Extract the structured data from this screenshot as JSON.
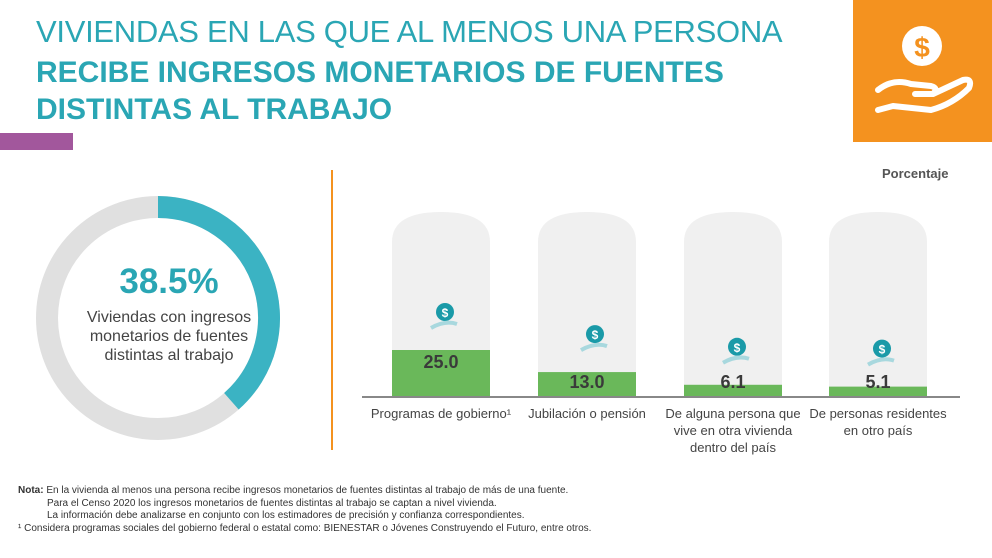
{
  "title": {
    "line1": "VIVIENDAS EN LAS QUE AL MENOS UNA PERSONA",
    "line2": "RECIBE INGRESOS MONETARIOS DE FUENTES DISTINTAS AL TRABAJO"
  },
  "colors": {
    "teal": "#2aa6b4",
    "orange": "#f4921f",
    "green": "#6ab85a",
    "purple": "#a2579c",
    "gray": "#e0e0e0"
  },
  "donut": {
    "value_label": "38.5%",
    "text": "Viviendas con ingresos monetarios de fuentes distintas al trabajo"
  },
  "chart_data": {
    "type": "bar",
    "unit_label": "Porcentaje",
    "categories": [
      "Programas de gobierno¹",
      "Jubilación o pensión",
      "De alguna persona que vive en otra vivienda dentro del país",
      "De personas residentes en otro país"
    ],
    "values": [
      25.0,
      13.0,
      6.1,
      5.1
    ],
    "value_labels": [
      "25.0",
      "13.0",
      "6.1",
      "5.1"
    ],
    "ylim": [
      0,
      100
    ],
    "icons": [
      "house-money-hand-icon",
      "pension-card-icon",
      "mexico-map-money-icon",
      "world-map-money-icon"
    ],
    "donut_value": 38.5
  },
  "notes": {
    "label": "Nota:",
    "line1": " En la vivienda al menos una persona recibe ingresos monetarios de fuentes distintas al trabajo de más de una fuente.",
    "line2": "Para el Censo 2020 los ingresos monetarios de fuentes distintas al trabajo se captan a nivel vivienda.",
    "line3": "La información debe analizarse en conjunto con los estimadores de precisión y confianza correspondientes.",
    "footnote": "¹ Considera programas sociales del gobierno federal o estatal como: BIENESTAR o Jóvenes Construyendo el Futuro, entre otros."
  }
}
